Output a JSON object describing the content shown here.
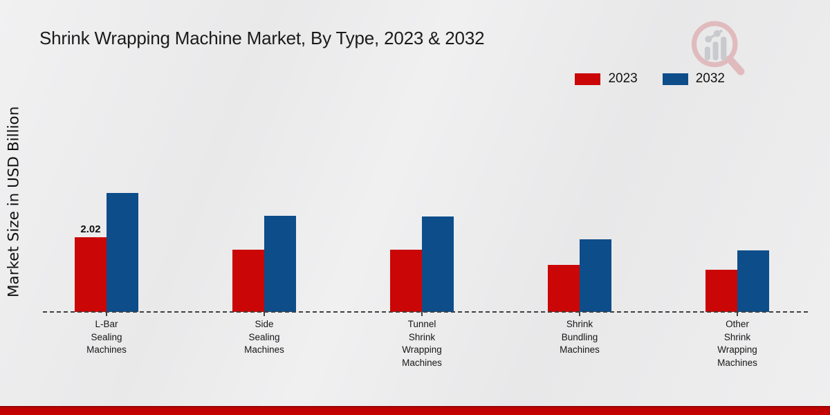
{
  "header": {
    "title": "Shrink Wrapping Machine Market, By Type, 2023 & 2032"
  },
  "y_axis": {
    "label": "Market Size in USD Billion"
  },
  "legend": {
    "items": [
      {
        "label": "2023",
        "color": "#cb0606"
      },
      {
        "label": "2032",
        "color": "#0d4d8a"
      }
    ]
  },
  "branding": {
    "logo": "magnifier-bar-chart-watermark",
    "ring_color": "#dfb3b6",
    "bars_color": "#c4c5c9"
  },
  "footer": {
    "accent_color": "#c60202"
  },
  "chart_data": {
    "type": "bar",
    "title": "Shrink Wrapping Machine Market, By Type, 2023 & 2032",
    "xlabel": "",
    "ylabel": "Market Size in USD Billion",
    "categories": [
      "L-Bar\nSealing\nMachines",
      "Side\nSealing\nMachines",
      "Tunnel\nShrink\nWrapping\nMachines",
      "Shrink\nBundling\nMachines",
      "Other\nShrink\nWrapping\nMachines"
    ],
    "series": [
      {
        "name": "2023",
        "color": "#cb0606",
        "values": [
          2.02,
          1.69,
          1.69,
          1.27,
          1.14
        ],
        "labels": [
          "2.02",
          "",
          "",
          "",
          ""
        ]
      },
      {
        "name": "2032",
        "color": "#0d4d8a",
        "values": [
          3.22,
          2.6,
          2.58,
          1.96,
          1.66
        ],
        "labels": [
          "",
          "",
          "",
          "",
          ""
        ]
      }
    ],
    "ylim": [
      0,
      3.74
    ],
    "grid": false,
    "baseline_style": "dashed",
    "legend_position": "top-right"
  }
}
